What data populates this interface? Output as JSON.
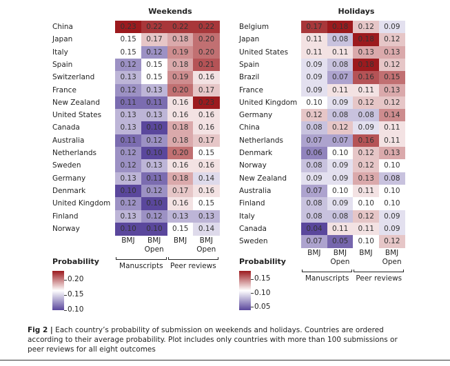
{
  "chart_data": [
    {
      "type": "heatmap",
      "title": "Weekends",
      "rows": [
        "China",
        "Japan",
        "Italy",
        "Spain",
        "Switzerland",
        "France",
        "New Zealand",
        "United States",
        "Canada",
        "Australia",
        "Netherlands",
        "Sweden",
        "Germany",
        "Denmark",
        "United Kingdom",
        "Finland",
        "Norway"
      ],
      "columns": [
        "BMJ",
        "BMJ Open",
        "BMJ",
        "BMJ Open"
      ],
      "column_groups": [
        {
          "label": "Manuscripts",
          "span": 2
        },
        {
          "label": "Peer reviews",
          "span": 2
        }
      ],
      "values": [
        [
          0.23,
          0.22,
          0.22,
          0.22
        ],
        [
          0.15,
          0.17,
          0.18,
          0.2
        ],
        [
          0.15,
          0.12,
          0.19,
          0.2
        ],
        [
          0.12,
          0.15,
          0.18,
          0.21
        ],
        [
          0.13,
          0.15,
          0.19,
          0.16
        ],
        [
          0.12,
          0.13,
          0.2,
          0.17
        ],
        [
          0.11,
          0.11,
          0.16,
          0.23
        ],
        [
          0.13,
          0.13,
          0.16,
          0.16
        ],
        [
          0.13,
          0.1,
          0.18,
          0.16
        ],
        [
          0.11,
          0.12,
          0.18,
          0.17
        ],
        [
          0.12,
          0.1,
          0.2,
          0.15
        ],
        [
          0.12,
          0.13,
          0.16,
          0.16
        ],
        [
          0.13,
          0.11,
          0.18,
          0.14
        ],
        [
          0.1,
          0.12,
          0.17,
          0.16
        ],
        [
          0.12,
          0.1,
          0.16,
          0.15
        ],
        [
          0.13,
          0.12,
          0.13,
          0.13
        ],
        [
          0.1,
          0.1,
          0.15,
          0.14
        ]
      ],
      "legend": {
        "title": "Probability",
        "ticks": [
          "0.20",
          "0.15",
          "0.10"
        ],
        "min": 0.1,
        "mid": 0.15,
        "max": 0.23
      }
    },
    {
      "type": "heatmap",
      "title": "Holidays",
      "rows": [
        "Belgium",
        "Japan",
        "United States",
        "Spain",
        "Brazil",
        "France",
        "United Kingdom",
        "Germany",
        "China",
        "Netherlands",
        "Denmark",
        "Norway",
        "New Zealand",
        "Australia",
        "Finland",
        "Italy",
        "Canada",
        "Sweden"
      ],
      "columns": [
        "BMJ",
        "BMJ Open",
        "BMJ",
        "BMJ Open"
      ],
      "column_groups": [
        {
          "label": "Manuscripts",
          "span": 2
        },
        {
          "label": "Peer reviews",
          "span": 2
        }
      ],
      "values": [
        [
          0.17,
          0.18,
          0.12,
          0.09
        ],
        [
          0.11,
          0.08,
          0.18,
          0.12
        ],
        [
          0.11,
          0.11,
          0.13,
          0.13
        ],
        [
          0.09,
          0.08,
          0.18,
          0.12
        ],
        [
          0.09,
          0.07,
          0.16,
          0.15
        ],
        [
          0.09,
          0.11,
          0.11,
          0.13
        ],
        [
          0.1,
          0.09,
          0.12,
          0.12
        ],
        [
          0.12,
          0.08,
          0.08,
          0.14
        ],
        [
          0.08,
          0.12,
          0.09,
          0.11
        ],
        [
          0.07,
          0.07,
          0.16,
          0.11
        ],
        [
          0.06,
          0.1,
          0.12,
          0.13
        ],
        [
          0.08,
          0.09,
          0.12,
          0.1
        ],
        [
          0.09,
          0.09,
          0.13,
          0.08
        ],
        [
          0.07,
          0.1,
          0.11,
          0.1
        ],
        [
          0.08,
          0.09,
          0.1,
          0.1
        ],
        [
          0.08,
          0.08,
          0.12,
          0.09
        ],
        [
          0.04,
          0.11,
          0.11,
          0.09
        ],
        [
          0.07,
          0.05,
          0.1,
          0.12
        ]
      ],
      "legend": {
        "title": "Probability",
        "ticks": [
          "0.15",
          "0.10",
          "0.05"
        ],
        "min": 0.04,
        "mid": 0.1,
        "max": 0.18
      }
    }
  ],
  "caption": {
    "label": "Fig 2 |",
    "text": " Each country’s probability of submission on weekends and holidays. Countries are ordered according to their average probability. Plot includes only countries with more than 100 submissions or peer reviews for all eight outcomes"
  },
  "colors": {
    "low": "#5a479c",
    "mid": "#ffffff",
    "high": "#9c1a1e"
  }
}
